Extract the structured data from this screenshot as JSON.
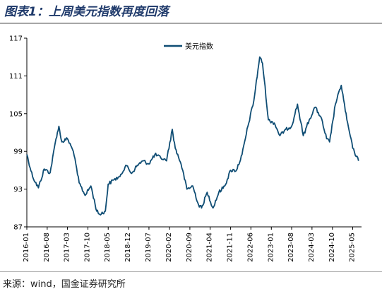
{
  "title": "图表1：上周美元指数再度回落",
  "source": "来源：wind，国金证券研究所",
  "colors": {
    "line": "#0f4d74",
    "axis": "#000000",
    "title": "#1f3a6b"
  },
  "chart_data": {
    "type": "line",
    "title": "",
    "xlabel": "",
    "ylabel": "",
    "ylim": [
      87,
      117
    ],
    "yticks": [
      87,
      93,
      99,
      105,
      111,
      117
    ],
    "xticks": [
      "2016-01",
      "2016-08",
      "2017-03",
      "2017-10",
      "2018-05",
      "2018-12",
      "2019-07",
      "2020-02",
      "2020-09",
      "2021-04",
      "2021-11",
      "2022-06",
      "2023-01",
      "2023-08",
      "2024-03",
      "2024-10",
      "2025-05"
    ],
    "legend": "top-center",
    "grid": false,
    "series": [
      {
        "name": "美元指数",
        "x": [
          "2016-01",
          "2016-03",
          "2016-05",
          "2016-07",
          "2016-09",
          "2016-11",
          "2016-12",
          "2017-01",
          "2017-03",
          "2017-05",
          "2017-07",
          "2017-09",
          "2017-11",
          "2018-01",
          "2018-02",
          "2018-04",
          "2018-05",
          "2018-07",
          "2018-09",
          "2018-11",
          "2019-01",
          "2019-03",
          "2019-05",
          "2019-07",
          "2019-09",
          "2019-11",
          "2020-01",
          "2020-03",
          "2020-04",
          "2020-06",
          "2020-08",
          "2020-10",
          "2020-12",
          "2021-01",
          "2021-03",
          "2021-05",
          "2021-07",
          "2021-09",
          "2021-11",
          "2022-01",
          "2022-03",
          "2022-05",
          "2022-07",
          "2022-09",
          "2022-10",
          "2022-12",
          "2023-02",
          "2023-04",
          "2023-06",
          "2023-08",
          "2023-10",
          "2023-12",
          "2024-02",
          "2024-04",
          "2024-06",
          "2024-08",
          "2024-09",
          "2024-11",
          "2025-01",
          "2025-03",
          "2025-05",
          "2025-07"
        ],
        "values": [
          98.5,
          95.0,
          93.2,
          96.2,
          95.6,
          101.0,
          103.0,
          100.5,
          101.0,
          99.0,
          94.0,
          92.0,
          93.5,
          89.5,
          89.0,
          89.5,
          93.8,
          94.5,
          95.0,
          96.8,
          95.5,
          96.8,
          97.5,
          97.0,
          98.5,
          98.0,
          97.5,
          102.5,
          99.5,
          97.0,
          93.0,
          93.5,
          90.5,
          90.0,
          92.5,
          90.0,
          92.5,
          93.5,
          96.0,
          96.0,
          98.5,
          103.0,
          107.0,
          114.0,
          113.0,
          104.0,
          103.5,
          101.5,
          102.5,
          103.0,
          106.5,
          101.5,
          104.0,
          106.0,
          104.5,
          101.0,
          100.5,
          106.5,
          109.5,
          104.0,
          99.5,
          97.5
        ]
      }
    ]
  }
}
